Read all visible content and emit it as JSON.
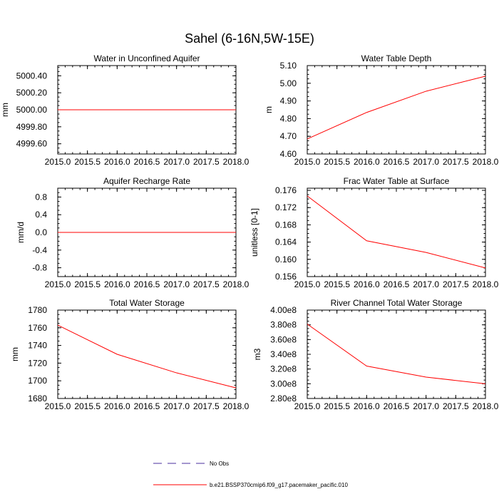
{
  "figure": {
    "title": "Sahel (6-16N,5W-15E)"
  },
  "legend": {
    "entries": [
      {
        "label": "No Obs",
        "color": "#4a2f9e",
        "dashed": true
      },
      {
        "label": "b.e21.BSSP370cmip6.f09_g17.pacemaker_pacific.010",
        "color": "#ff0000",
        "dashed": false
      }
    ]
  },
  "chart_data": [
    {
      "type": "line",
      "title": "Water in Unconfined Aquifer",
      "ylabel": "mm",
      "xlim": [
        2015.0,
        2018.0
      ],
      "ylim": [
        4999.48,
        5000.52
      ],
      "xticks": [
        2015.0,
        2015.5,
        2016.0,
        2016.5,
        2017.0,
        2017.5,
        2018.0
      ],
      "xtick_labels": [
        "2015.0",
        "2015.5",
        "2016.0",
        "2016.5",
        "2017.0",
        "2017.5",
        "2018.0"
      ],
      "yticks": [
        4999.6,
        4999.8,
        5000.0,
        5000.2,
        5000.4
      ],
      "ytick_labels": [
        "4999.60",
        "4999.80",
        "5000.00",
        "5000.20",
        "5000.40"
      ],
      "series": [
        {
          "name": "b.e21.BSSP370cmip6.f09_g17.pacemaker_pacific.010",
          "color": "#ff0000",
          "x": [
            2015.0,
            2016.0,
            2017.0,
            2018.0
          ],
          "y": [
            5000.0,
            5000.0,
            5000.0,
            5000.0
          ]
        }
      ]
    },
    {
      "type": "line",
      "title": "Water Table Depth",
      "ylabel": "m",
      "xlim": [
        2015.0,
        2018.0
      ],
      "ylim": [
        4.6,
        5.1
      ],
      "xticks": [
        2015.0,
        2015.5,
        2016.0,
        2016.5,
        2017.0,
        2017.5,
        2018.0
      ],
      "xtick_labels": [
        "2015.0",
        "2015.5",
        "2016.0",
        "2016.5",
        "2017.0",
        "2017.5",
        "2018.0"
      ],
      "yticks": [
        4.6,
        4.7,
        4.8,
        4.9,
        5.0,
        5.1
      ],
      "ytick_labels": [
        "4.60",
        "4.70",
        "4.80",
        "4.90",
        "5.00",
        "5.10"
      ],
      "series": [
        {
          "name": "b.e21.BSSP370cmip6.f09_g17.pacemaker_pacific.010",
          "color": "#ff0000",
          "x": [
            2015.0,
            2016.0,
            2017.0,
            2018.0
          ],
          "y": [
            4.685,
            4.835,
            4.955,
            5.04
          ]
        }
      ]
    },
    {
      "type": "line",
      "title": "Aquifer Recharge Rate",
      "ylabel": "mm/d",
      "xlim": [
        2015.0,
        2018.0
      ],
      "ylim": [
        -1.0,
        1.0
      ],
      "xticks": [
        2015.0,
        2015.5,
        2016.0,
        2016.5,
        2017.0,
        2017.5,
        2018.0
      ],
      "xtick_labels": [
        "2015.0",
        "2015.5",
        "2016.0",
        "2016.5",
        "2017.0",
        "2017.5",
        "2018.0"
      ],
      "yticks": [
        -0.8,
        -0.4,
        0.0,
        0.4,
        0.8
      ],
      "ytick_labels": [
        "-0.8",
        "-0.4",
        "0.0",
        "0.4",
        "0.8"
      ],
      "series": [
        {
          "name": "b.e21.BSSP370cmip6.f09_g17.pacemaker_pacific.010",
          "color": "#ff0000",
          "x": [
            2015.0,
            2016.0,
            2017.0,
            2018.0
          ],
          "y": [
            0.0,
            0.0,
            0.0,
            0.0
          ]
        }
      ]
    },
    {
      "type": "line",
      "title": "Frac Water Table at Surface",
      "ylabel": "unitless [0-1]",
      "xlim": [
        2015.0,
        2018.0
      ],
      "ylim": [
        0.156,
        0.1765
      ],
      "xticks": [
        2015.0,
        2015.5,
        2016.0,
        2016.5,
        2017.0,
        2017.5,
        2018.0
      ],
      "xtick_labels": [
        "2015.0",
        "2015.5",
        "2016.0",
        "2016.5",
        "2017.0",
        "2017.5",
        "2018.0"
      ],
      "yticks": [
        0.156,
        0.16,
        0.164,
        0.168,
        0.172,
        0.176
      ],
      "ytick_labels": [
        "0.156",
        "0.160",
        "0.164",
        "0.168",
        "0.172",
        "0.176"
      ],
      "series": [
        {
          "name": "b.e21.BSSP370cmip6.f09_g17.pacemaker_pacific.010",
          "color": "#ff0000",
          "x": [
            2015.0,
            2016.0,
            2017.0,
            2018.0
          ],
          "y": [
            0.1747,
            0.1643,
            0.1616,
            0.158
          ]
        }
      ]
    },
    {
      "type": "line",
      "title": "Total Water Storage",
      "ylabel": "mm",
      "xlim": [
        2015.0,
        2018.0
      ],
      "ylim": [
        1680,
        1780
      ],
      "xticks": [
        2015.0,
        2015.5,
        2016.0,
        2016.5,
        2017.0,
        2017.5,
        2018.0
      ],
      "xtick_labels": [
        "2015.0",
        "2015.5",
        "2016.0",
        "2016.5",
        "2017.0",
        "2017.5",
        "2018.0"
      ],
      "yticks": [
        1680,
        1700,
        1720,
        1740,
        1760,
        1780
      ],
      "ytick_labels": [
        "1680",
        "1700",
        "1720",
        "1740",
        "1760",
        "1780"
      ],
      "series": [
        {
          "name": "b.e21.BSSP370cmip6.f09_g17.pacemaker_pacific.010",
          "color": "#ff0000",
          "x": [
            2015.0,
            2016.0,
            2017.0,
            2018.0
          ],
          "y": [
            1763,
            1730,
            1709,
            1692
          ]
        }
      ]
    },
    {
      "type": "line",
      "title": "River Channel Total Water Storage",
      "ylabel": "m3",
      "xlim": [
        2015.0,
        2018.0
      ],
      "ylim": [
        280000000.0,
        400000000.0
      ],
      "xticks": [
        2015.0,
        2015.5,
        2016.0,
        2016.5,
        2017.0,
        2017.5,
        2018.0
      ],
      "xtick_labels": [
        "2015.0",
        "2015.5",
        "2016.0",
        "2016.5",
        "2017.0",
        "2017.5",
        "2018.0"
      ],
      "yticks": [
        280000000.0,
        300000000.0,
        320000000.0,
        340000000.0,
        360000000.0,
        380000000.0,
        400000000.0
      ],
      "ytick_labels": [
        "2.80e8",
        "3.00e8",
        "3.20e8",
        "3.40e8",
        "3.60e8",
        "3.80e8",
        "4.00e8"
      ],
      "series": [
        {
          "name": "b.e21.BSSP370cmip6.f09_g17.pacemaker_pacific.010",
          "color": "#ff0000",
          "x": [
            2015.0,
            2016.0,
            2017.0,
            2018.0
          ],
          "y": [
            381000000.0,
            324000000.0,
            309000000.0,
            300000000.0
          ]
        }
      ]
    }
  ]
}
